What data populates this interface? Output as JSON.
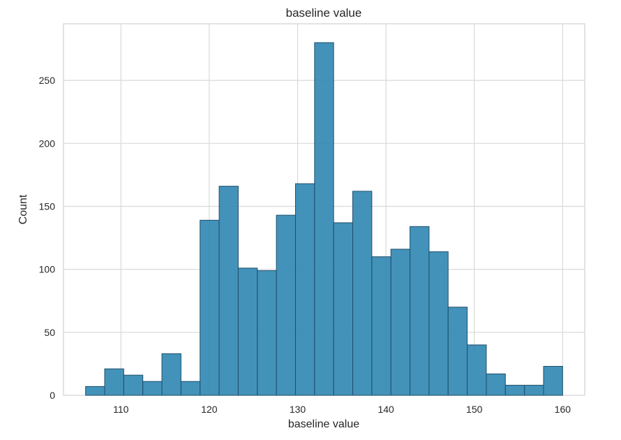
{
  "chart_data": {
    "type": "bar",
    "title": "baseline value",
    "xlabel": "baseline value",
    "ylabel": "Count",
    "bin_edges": [
      106,
      108.16,
      110.32,
      112.48,
      114.64,
      116.8,
      118.96,
      121.12,
      123.28,
      125.44,
      127.6,
      129.76,
      131.92,
      134.08,
      136.24,
      138.4,
      140.56,
      142.72,
      144.88,
      147.04,
      149.2,
      151.36,
      153.52,
      155.68,
      157.84,
      160
    ],
    "values": [
      7,
      21,
      16,
      11,
      33,
      11,
      139,
      166,
      101,
      99,
      143,
      168,
      280,
      137,
      162,
      110,
      116,
      134,
      114,
      70,
      40,
      17,
      8,
      8,
      23
    ],
    "xlim": [
      103.5,
      162.5
    ],
    "ylim": [
      0,
      295
    ],
    "x_ticks": [
      110,
      120,
      130,
      140,
      150,
      160
    ],
    "y_ticks": [
      0,
      50,
      100,
      150,
      200,
      250
    ],
    "grid": true,
    "bar_color": "#2f86b2",
    "bar_edge_color": "#1e4f6a"
  }
}
